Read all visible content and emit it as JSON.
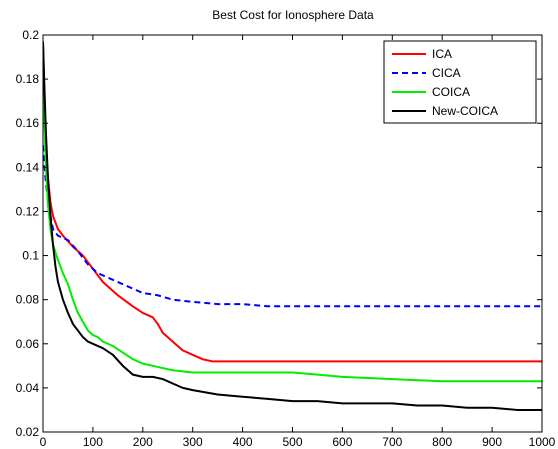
{
  "chart_data": {
    "type": "line",
    "title": "Best Cost for Ionosphere Data",
    "xlabel": "",
    "ylabel": "",
    "xlim": [
      0,
      1000
    ],
    "ylim": [
      0.02,
      0.2
    ],
    "xticks": [
      0,
      100,
      200,
      300,
      400,
      500,
      600,
      700,
      800,
      900,
      1000
    ],
    "yticks": [
      0.02,
      0.04,
      0.06,
      0.08,
      0.1,
      0.12,
      0.14,
      0.16,
      0.18,
      0.2
    ],
    "xtick_labels": [
      "0",
      "100",
      "200",
      "300",
      "400",
      "500",
      "600",
      "700",
      "800",
      "900",
      "1000"
    ],
    "ytick_labels": [
      "0.02",
      "0.04",
      "0.06",
      "0.08",
      "0.1",
      "0.12",
      "0.14",
      "0.16",
      "0.18",
      "0.2"
    ],
    "grid": false,
    "legend_position": "top-right",
    "series": [
      {
        "name": "ICA",
        "color": "#ff0000",
        "dash": "solid",
        "points": [
          [
            0,
            0.197
          ],
          [
            5,
            0.15
          ],
          [
            10,
            0.135
          ],
          [
            15,
            0.124
          ],
          [
            20,
            0.118
          ],
          [
            30,
            0.112
          ],
          [
            40,
            0.109
          ],
          [
            60,
            0.104
          ],
          [
            80,
            0.1
          ],
          [
            100,
            0.094
          ],
          [
            120,
            0.088
          ],
          [
            150,
            0.082
          ],
          [
            180,
            0.077
          ],
          [
            200,
            0.074
          ],
          [
            220,
            0.072
          ],
          [
            230,
            0.069
          ],
          [
            240,
            0.065
          ],
          [
            260,
            0.061
          ],
          [
            280,
            0.057
          ],
          [
            300,
            0.055
          ],
          [
            320,
            0.053
          ],
          [
            340,
            0.052
          ],
          [
            400,
            0.052
          ],
          [
            600,
            0.052
          ],
          [
            800,
            0.052
          ],
          [
            1000,
            0.052
          ]
        ]
      },
      {
        "name": "CICA",
        "color": "#0000ff",
        "dash": "dashed",
        "points": [
          [
            0,
            0.15
          ],
          [
            5,
            0.135
          ],
          [
            10,
            0.125
          ],
          [
            15,
            0.118
          ],
          [
            20,
            0.112
          ],
          [
            30,
            0.109
          ],
          [
            50,
            0.107
          ],
          [
            70,
            0.102
          ],
          [
            90,
            0.096
          ],
          [
            110,
            0.092
          ],
          [
            140,
            0.089
          ],
          [
            170,
            0.086
          ],
          [
            200,
            0.083
          ],
          [
            230,
            0.082
          ],
          [
            260,
            0.08
          ],
          [
            300,
            0.079
          ],
          [
            350,
            0.078
          ],
          [
            400,
            0.078
          ],
          [
            450,
            0.077
          ],
          [
            600,
            0.077
          ],
          [
            800,
            0.077
          ],
          [
            1000,
            0.077
          ]
        ]
      },
      {
        "name": "COICA",
        "color": "#00ee00",
        "dash": "solid",
        "points": [
          [
            0,
            0.175
          ],
          [
            3,
            0.16
          ],
          [
            6,
            0.14
          ],
          [
            10,
            0.123
          ],
          [
            15,
            0.112
          ],
          [
            20,
            0.105
          ],
          [
            30,
            0.098
          ],
          [
            40,
            0.092
          ],
          [
            50,
            0.087
          ],
          [
            60,
            0.08
          ],
          [
            70,
            0.074
          ],
          [
            80,
            0.07
          ],
          [
            90,
            0.066
          ],
          [
            100,
            0.064
          ],
          [
            110,
            0.063
          ],
          [
            120,
            0.061
          ],
          [
            140,
            0.059
          ],
          [
            160,
            0.056
          ],
          [
            180,
            0.053
          ],
          [
            200,
            0.051
          ],
          [
            220,
            0.05
          ],
          [
            240,
            0.049
          ],
          [
            260,
            0.048
          ],
          [
            300,
            0.047
          ],
          [
            400,
            0.047
          ],
          [
            500,
            0.047
          ],
          [
            550,
            0.046
          ],
          [
            600,
            0.045
          ],
          [
            700,
            0.044
          ],
          [
            800,
            0.043
          ],
          [
            900,
            0.043
          ],
          [
            1000,
            0.043
          ]
        ]
      },
      {
        "name": "New-COICA",
        "color": "#000000",
        "dash": "solid",
        "points": [
          [
            0,
            0.197
          ],
          [
            3,
            0.175
          ],
          [
            6,
            0.155
          ],
          [
            10,
            0.135
          ],
          [
            15,
            0.118
          ],
          [
            20,
            0.105
          ],
          [
            25,
            0.095
          ],
          [
            30,
            0.088
          ],
          [
            40,
            0.08
          ],
          [
            50,
            0.074
          ],
          [
            60,
            0.069
          ],
          [
            70,
            0.066
          ],
          [
            80,
            0.063
          ],
          [
            90,
            0.061
          ],
          [
            100,
            0.06
          ],
          [
            120,
            0.058
          ],
          [
            140,
            0.055
          ],
          [
            160,
            0.05
          ],
          [
            170,
            0.048
          ],
          [
            180,
            0.046
          ],
          [
            200,
            0.045
          ],
          [
            220,
            0.045
          ],
          [
            240,
            0.044
          ],
          [
            260,
            0.042
          ],
          [
            280,
            0.04
          ],
          [
            300,
            0.039
          ],
          [
            350,
            0.037
          ],
          [
            400,
            0.036
          ],
          [
            450,
            0.035
          ],
          [
            500,
            0.034
          ],
          [
            550,
            0.034
          ],
          [
            600,
            0.033
          ],
          [
            700,
            0.033
          ],
          [
            750,
            0.032
          ],
          [
            800,
            0.032
          ],
          [
            850,
            0.031
          ],
          [
            900,
            0.031
          ],
          [
            950,
            0.03
          ],
          [
            1000,
            0.03
          ]
        ]
      }
    ]
  }
}
